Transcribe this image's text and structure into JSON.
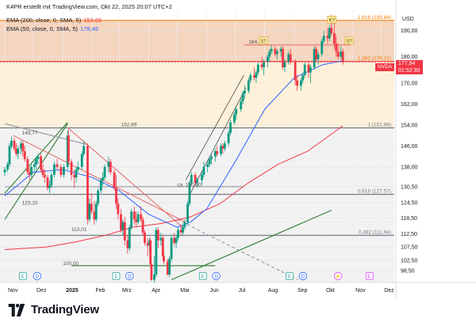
{
  "header": {
    "source": "K4PR erstellt mit TradingView.com, Okt 22, 2025 20:07 UTC+2",
    "ema200_label": "EMA (200, close, 0, SMA, 5)",
    "ema200_value": "153,65",
    "ema50_label": "EMA (50, close, 0, SMA, 5)",
    "ema50_value": "178,46"
  },
  "price_tag": {
    "symbol": "NVDA",
    "price": "177,94",
    "countdown": "01:52:30"
  },
  "footer": {
    "brand": "TradingView"
  },
  "colors": {
    "ema200": "#f23645",
    "ema50": "#2962ff",
    "fib": "#787b86",
    "resistance_zone": "#f5d0b8",
    "fib_zone": "#fff1d9",
    "support_line": "#2e7d32",
    "up_candle": "#089981",
    "down_candle": "#f23645"
  },
  "chart_data": {
    "type": "candlestick",
    "ticker": "NVDA",
    "y_axis_unit": "USD",
    "ylim": [
      94,
      198
    ],
    "xlim": [
      "2024-11-01",
      "2025-12-15"
    ],
    "y_ticks": [
      "98,50",
      "102,50",
      "107,50",
      "112,50",
      "118,50",
      "124,50",
      "130,50",
      "138,00",
      "146,00",
      "154,00",
      "162,00",
      "170,00",
      "180,00",
      "190,00"
    ],
    "x_ticks": [
      "Nov",
      "Dez",
      "2025",
      "Feb",
      "Mrz",
      "Apr",
      "Mai",
      "Jun",
      "Jul",
      "Aug",
      "Sep",
      "Okt",
      "Nov",
      "Dez"
    ],
    "fib_levels": [
      {
        "label": "1,618 (193,84)",
        "value": 193.84
      },
      {
        "label": "1,382 (178,21)",
        "value": 178.21
      },
      {
        "label": "1 (152,89)",
        "value": 152.89
      },
      {
        "label": "0,618 (127,57)",
        "value": 127.57
      },
      {
        "label": "0,382 (111,94)",
        "value": 111.94
      }
    ],
    "annotations": [
      {
        "text": "149,77",
        "x": "2024-11-19",
        "y": 149.77
      },
      {
        "text": "152,89",
        "x": "2025-03-03",
        "y": 152.89
      },
      {
        "text": "ca. 130,00",
        "x": "2025-05-01",
        "y": 130.0
      },
      {
        "text": "123,10",
        "x": "2024-11-19",
        "y": 123.1
      },
      {
        "text": "113,01",
        "x": "2025-01-10",
        "y": 113.01
      },
      {
        "text": "100,00",
        "x": "2025-01-01",
        "y": 100.0
      },
      {
        "text": "184,48",
        "x": "2025-07-15",
        "y": 184.48
      }
    ],
    "event_markers": [
      {
        "label": "E",
        "x": "2024-11-20"
      },
      {
        "label": "D",
        "x": "2024-12-05"
      },
      {
        "label": "E",
        "x": "2025-02-26"
      },
      {
        "label": "D",
        "x": "2025-03-12"
      },
      {
        "label": "E",
        "x": "2025-05-28"
      },
      {
        "label": "D",
        "x": "2025-06-11"
      },
      {
        "label": "E",
        "x": "2025-08-27"
      },
      {
        "label": "D",
        "x": "2025-09-10"
      },
      {
        "label": "⚡",
        "x": "2025-10-17"
      },
      {
        "label": "E",
        "x": "2025-11-19"
      }
    ],
    "flag_markers": [
      {
        "label": "K?",
        "x": "2025-10-10",
        "y": 194
      },
      {
        "label": "S?",
        "x": "2025-07-30",
        "y": 186
      },
      {
        "label": "S?",
        "x": "2025-10-28",
        "y": 186
      }
    ],
    "series": [
      {
        "name": "EMA (200, close, 0, SMA, 5)",
        "value": 153.65,
        "points": [
          [
            "2024-11-01",
            106.5
          ],
          [
            "2024-12-15",
            107.5
          ],
          [
            "2025-01-15",
            109.5
          ],
          [
            "2025-02-15",
            112
          ],
          [
            "2025-03-15",
            115
          ],
          [
            "2025-04-15",
            116.5
          ],
          [
            "2025-05-15",
            119
          ],
          [
            "2025-06-15",
            124
          ],
          [
            "2025-07-15",
            132
          ],
          [
            "2025-08-15",
            139
          ],
          [
            "2025-09-15",
            144
          ],
          [
            "2025-10-22",
            153.65
          ]
        ]
      },
      {
        "name": "EMA (50, close, 0, SMA, 5)",
        "value": 178.46,
        "points": [
          [
            "2024-11-01",
            127
          ],
          [
            "2024-12-01",
            136
          ],
          [
            "2025-01-01",
            137
          ],
          [
            "2025-02-01",
            134
          ],
          [
            "2025-03-01",
            129
          ],
          [
            "2025-04-01",
            120
          ],
          [
            "2025-05-01",
            115
          ],
          [
            "2025-05-15",
            117
          ],
          [
            "2025-06-01",
            122
          ],
          [
            "2025-07-01",
            140
          ],
          [
            "2025-08-01",
            160
          ],
          [
            "2025-09-01",
            172
          ],
          [
            "2025-10-01",
            177
          ],
          [
            "2025-10-22",
            178.46
          ]
        ]
      }
    ],
    "candles": [
      [
        "2024-11-01",
        136,
        138,
        134.5,
        137
      ],
      [
        "2024-11-04",
        137,
        140,
        136,
        139
      ],
      [
        "2024-11-06",
        139,
        147,
        138,
        146
      ],
      [
        "2024-11-08",
        146,
        149.5,
        145,
        148
      ],
      [
        "2024-11-11",
        148,
        149,
        144,
        145
      ],
      [
        "2024-11-13",
        145,
        147,
        142,
        143
      ],
      [
        "2024-11-15",
        143,
        146,
        141,
        145
      ],
      [
        "2024-11-18",
        145,
        148,
        143,
        147
      ],
      [
        "2024-11-20",
        147,
        148,
        142,
        144
      ],
      [
        "2024-11-22",
        144,
        146,
        140,
        141
      ],
      [
        "2024-11-25",
        141,
        142,
        135,
        136
      ],
      [
        "2024-11-27",
        136,
        138,
        133,
        135
      ],
      [
        "2024-11-29",
        135,
        139,
        134,
        138
      ],
      [
        "2024-12-02",
        138,
        140,
        136,
        139
      ],
      [
        "2024-12-04",
        139,
        142,
        137,
        141
      ],
      [
        "2024-12-06",
        141,
        143,
        139,
        142
      ],
      [
        "2024-12-09",
        142,
        143,
        136,
        137
      ],
      [
        "2024-12-11",
        137,
        139,
        134,
        135
      ],
      [
        "2024-12-13",
        135,
        137,
        132,
        134
      ],
      [
        "2024-12-16",
        134,
        135,
        129,
        130
      ],
      [
        "2024-12-18",
        130,
        133,
        128,
        131
      ],
      [
        "2024-12-20",
        131,
        136,
        130,
        135
      ],
      [
        "2024-12-23",
        135,
        140,
        134,
        139
      ],
      [
        "2024-12-26",
        139,
        141,
        137,
        138
      ],
      [
        "2024-12-30",
        138,
        139,
        134,
        135
      ],
      [
        "2025-01-02",
        135,
        139,
        134,
        138
      ],
      [
        "2025-01-06",
        138,
        152,
        137,
        150
      ],
      [
        "2025-01-07",
        150,
        152,
        139,
        140
      ],
      [
        "2025-01-10",
        140,
        141,
        133,
        135
      ],
      [
        "2025-01-13",
        135,
        137,
        130,
        134
      ],
      [
        "2025-01-15",
        134,
        138,
        132,
        137
      ],
      [
        "2025-01-17",
        137,
        140,
        136,
        138
      ],
      [
        "2025-01-21",
        138,
        144,
        137,
        143
      ],
      [
        "2025-01-23",
        143,
        148,
        142,
        146
      ],
      [
        "2025-01-27",
        146,
        147,
        116,
        118
      ],
      [
        "2025-01-29",
        118,
        126,
        117,
        124
      ],
      [
        "2025-01-31",
        124,
        128,
        120,
        121
      ],
      [
        "2025-02-03",
        121,
        125,
        116,
        118
      ],
      [
        "2025-02-05",
        118,
        125,
        117,
        124
      ],
      [
        "2025-02-07",
        124,
        130,
        123,
        129
      ],
      [
        "2025-02-10",
        129,
        134,
        128,
        133
      ],
      [
        "2025-02-12",
        133,
        136,
        131,
        134
      ],
      [
        "2025-02-14",
        134,
        139,
        133,
        138
      ],
      [
        "2025-02-18",
        138,
        142,
        136,
        140
      ],
      [
        "2025-02-20",
        140,
        141,
        135,
        136
      ],
      [
        "2025-02-24",
        136,
        137,
        129,
        130
      ],
      [
        "2025-02-26",
        130,
        135,
        122,
        124
      ],
      [
        "2025-02-28",
        124,
        126,
        118,
        120
      ],
      [
        "2025-03-03",
        120,
        122,
        113,
        114
      ],
      [
        "2025-03-05",
        114,
        118,
        112,
        117
      ],
      [
        "2025-03-07",
        117,
        119,
        108,
        110
      ],
      [
        "2025-03-10",
        110,
        112,
        105,
        107
      ],
      [
        "2025-03-12",
        107,
        116,
        106,
        115
      ],
      [
        "2025-03-14",
        115,
        122,
        114,
        121
      ],
      [
        "2025-03-17",
        121,
        123,
        116,
        118
      ],
      [
        "2025-03-19",
        118,
        121,
        115,
        117
      ],
      [
        "2025-03-21",
        117,
        121,
        116,
        120
      ],
      [
        "2025-03-24",
        120,
        123,
        117,
        118
      ],
      [
        "2025-03-26",
        118,
        119,
        112,
        113
      ],
      [
        "2025-03-28",
        113,
        114,
        108,
        109
      ],
      [
        "2025-03-31",
        109,
        111,
        104,
        108
      ],
      [
        "2025-04-02",
        108,
        111,
        106,
        110
      ],
      [
        "2025-04-03",
        110,
        111,
        100,
        101
      ],
      [
        "2025-04-04",
        101,
        102,
        94.5,
        95
      ],
      [
        "2025-04-07",
        95,
        104,
        94,
        97
      ],
      [
        "2025-04-09",
        97,
        115,
        96,
        114
      ],
      [
        "2025-04-11",
        114,
        115,
        107,
        110
      ],
      [
        "2025-04-14",
        110,
        113,
        108,
        111
      ],
      [
        "2025-04-16",
        111,
        112,
        103,
        104
      ],
      [
        "2025-04-17",
        104,
        106,
        101,
        102
      ],
      [
        "2025-04-21",
        102,
        103,
        96.5,
        97
      ],
      [
        "2025-04-23",
        97,
        104,
        96,
        103
      ],
      [
        "2025-04-25",
        103,
        112,
        102,
        111
      ],
      [
        "2025-04-28",
        111,
        113,
        108,
        109
      ],
      [
        "2025-04-30",
        109,
        112,
        107,
        111
      ],
      [
        "2025-05-02",
        111,
        115,
        110,
        114
      ],
      [
        "2025-05-05",
        114,
        116,
        112,
        113
      ],
      [
        "2025-05-07",
        113,
        116,
        112,
        115
      ],
      [
        "2025-05-09",
        115,
        118,
        114,
        117
      ],
      [
        "2025-05-12",
        117,
        125,
        116,
        124
      ],
      [
        "2025-05-14",
        124,
        133,
        123,
        132
      ],
      [
        "2025-05-16",
        132,
        136,
        131,
        135
      ],
      [
        "2025-05-20",
        135,
        136,
        131,
        132
      ],
      [
        "2025-05-22",
        132,
        134,
        130,
        133
      ],
      [
        "2025-05-27",
        133,
        136,
        131,
        135
      ],
      [
        "2025-05-29",
        135,
        140,
        134,
        138
      ],
      [
        "2025-06-02",
        138,
        140,
        136,
        139
      ],
      [
        "2025-06-04",
        139,
        142,
        138,
        141
      ],
      [
        "2025-06-06",
        141,
        143,
        139,
        142
      ],
      [
        "2025-06-10",
        142,
        145,
        140,
        144
      ],
      [
        "2025-06-12",
        144,
        146,
        142,
        143
      ],
      [
        "2025-06-16",
        143,
        147,
        142,
        146
      ],
      [
        "2025-06-18",
        146,
        147,
        143,
        145
      ],
      [
        "2025-06-20",
        145,
        148,
        144,
        147
      ],
      [
        "2025-06-24",
        147,
        152,
        146,
        151
      ],
      [
        "2025-06-26",
        151,
        156,
        150,
        155
      ],
      [
        "2025-06-30",
        155,
        159,
        154,
        158
      ],
      [
        "2025-07-02",
        158,
        161,
        156,
        160
      ],
      [
        "2025-07-07",
        160,
        164,
        159,
        163
      ],
      [
        "2025-07-09",
        163,
        167,
        162,
        166
      ],
      [
        "2025-07-11",
        166,
        169,
        164,
        167
      ],
      [
        "2025-07-15",
        167,
        172,
        166,
        171
      ],
      [
        "2025-07-17",
        171,
        174,
        170,
        173
      ],
      [
        "2025-07-21",
        173,
        176,
        171,
        172
      ],
      [
        "2025-07-23",
        172,
        175,
        170,
        174
      ],
      [
        "2025-07-25",
        174,
        178,
        173,
        177
      ],
      [
        "2025-07-29",
        177,
        180,
        175,
        176
      ],
      [
        "2025-07-31",
        176,
        179,
        173,
        178
      ],
      [
        "2025-08-04",
        178,
        181,
        176,
        180
      ],
      [
        "2025-08-06",
        180,
        183,
        178,
        182
      ],
      [
        "2025-08-08",
        182,
        184.5,
        181,
        183
      ],
      [
        "2025-08-12",
        183,
        184,
        180,
        181
      ],
      [
        "2025-08-14",
        181,
        183,
        179,
        182
      ],
      [
        "2025-08-18",
        182,
        184,
        180,
        183
      ],
      [
        "2025-08-20",
        183,
        184,
        175,
        176
      ],
      [
        "2025-08-22",
        176,
        179,
        174,
        178
      ],
      [
        "2025-08-26",
        178,
        182,
        177,
        181
      ],
      [
        "2025-08-28",
        181,
        183,
        177,
        178
      ],
      [
        "2025-09-02",
        178,
        179,
        169,
        171
      ],
      [
        "2025-09-04",
        171,
        173,
        167,
        169
      ],
      [
        "2025-09-08",
        169,
        172,
        167,
        171
      ],
      [
        "2025-09-10",
        171,
        174,
        170,
        173
      ],
      [
        "2025-09-12",
        173,
        178,
        172,
        177
      ],
      [
        "2025-09-16",
        177,
        178,
        172,
        174
      ],
      [
        "2025-09-18",
        174,
        177,
        170,
        176
      ],
      [
        "2025-09-22",
        176,
        184,
        175,
        183
      ],
      [
        "2025-09-24",
        183,
        184,
        178,
        179
      ],
      [
        "2025-09-26",
        179,
        182,
        177,
        181
      ],
      [
        "2025-09-30",
        181,
        187,
        180,
        186
      ],
      [
        "2025-10-02",
        186,
        190,
        185,
        188
      ],
      [
        "2025-10-06",
        188,
        191,
        185,
        187
      ],
      [
        "2025-10-08",
        187,
        192,
        186,
        191
      ],
      [
        "2025-10-10",
        191,
        196,
        188,
        189
      ],
      [
        "2025-10-13",
        189,
        193,
        183,
        185
      ],
      [
        "2025-10-15",
        185,
        188,
        180,
        182
      ],
      [
        "2025-10-17",
        182,
        185,
        179,
        180
      ],
      [
        "2025-10-20",
        180,
        184,
        179,
        182
      ],
      [
        "2025-10-22",
        182,
        183,
        177,
        177.94
      ]
    ],
    "trend_lines": [
      {
        "from": [
          "2024-11-01",
          118
        ],
        "to": [
          "2025-01-06",
          154.5
        ],
        "color": "green"
      },
      {
        "from": [
          "2024-11-01",
          128
        ],
        "to": [
          "2025-01-06",
          155
        ],
        "color": "green"
      },
      {
        "from": [
          "2024-11-01",
          154.5
        ],
        "to": [
          "2025-01-27",
          146.5
        ],
        "color": "gray"
      },
      {
        "from": [
          "2025-01-06",
          153
        ],
        "to": [
          "2025-05-07",
          115
        ],
        "color": "red"
      },
      {
        "from": [
          "2024-11-10",
          150
        ],
        "to": [
          "2025-05-10",
          117
        ],
        "color": "red"
      },
      {
        "from": [
          "2025-05-01",
          118
        ],
        "to": [
          "2025-09-05",
          95
        ],
        "color": "gray-dashed"
      },
      {
        "from": [
          "2025-05-10",
          133
        ],
        "to": [
          "2025-07-10",
          173
        ],
        "color": "black-thin"
      },
      {
        "from": [
          "2025-05-15",
          128
        ],
        "to": [
          "2025-07-12",
          168
        ],
        "color": "black-thin"
      },
      {
        "from": [
          "2025-04-25",
          95
        ],
        "to": [
          "2025-10-10",
          121.5
        ],
        "color": "green"
      },
      {
        "from": [
          "2025-01-10",
          100.4
        ],
        "to": [
          "2025-06-10",
          100.4
        ],
        "color": "green"
      },
      {
        "from": [
          "2024-11-01",
          130.5
        ],
        "to": [
          "2025-07-10",
          130.5
        ],
        "color": "gray"
      },
      {
        "from": [
          "2025-07-10",
          184.5
        ],
        "to": [
          "2025-10-30",
          184.5
        ],
        "color": "red"
      }
    ]
  }
}
